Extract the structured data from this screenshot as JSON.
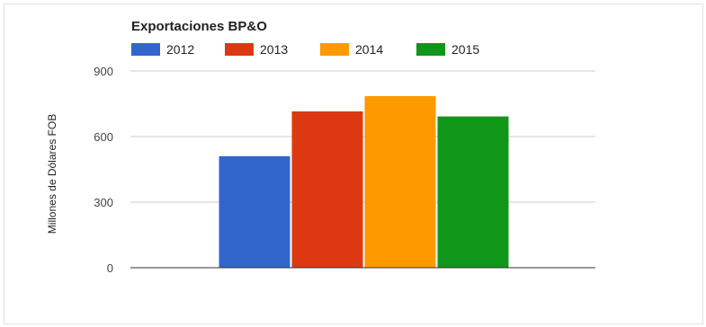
{
  "chart_data": {
    "type": "bar",
    "title": "Exportaciones BP&O",
    "xlabel": "",
    "ylabel": "Millones de Dólares FOB",
    "categories": [
      ""
    ],
    "series": [
      {
        "name": "2012",
        "values": [
          510
        ],
        "color": "#3366cc"
      },
      {
        "name": "2013",
        "values": [
          715
        ],
        "color": "#dc3912"
      },
      {
        "name": "2014",
        "values": [
          785
        ],
        "color": "#ff9900"
      },
      {
        "name": "2015",
        "values": [
          692
        ],
        "color": "#109618"
      }
    ],
    "ylim": [
      0,
      900
    ],
    "yticks": [
      0,
      300,
      600,
      900
    ],
    "ytick_labels": [
      "0",
      "300",
      "600",
      "900"
    ],
    "grid": true,
    "legend_position": "top"
  }
}
